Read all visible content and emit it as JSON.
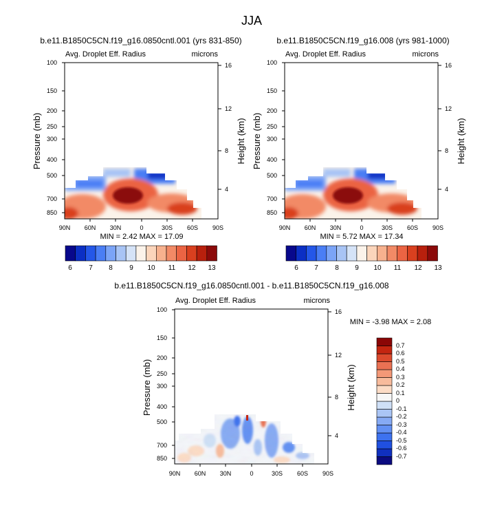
{
  "figure_title": "JJA",
  "colors": {
    "main_scale": [
      "#08088c",
      "#0b2fc4",
      "#2457e8",
      "#4a7ef5",
      "#7ba4f7",
      "#a8c4f5",
      "#d5e3f7",
      "#fbf3ea",
      "#fbd5bb",
      "#f7b18e",
      "#f28a66",
      "#eb6443",
      "#d9401f",
      "#b8200d",
      "#8b0a0a"
    ],
    "diff_scale": [
      "#0b0b80",
      "#1030bf",
      "#2050e0",
      "#3d72ef",
      "#6290f3",
      "#86aaf4",
      "#aac5f5",
      "#cfe0f7",
      "#f7f7f7",
      "#fcdcc6",
      "#f8bb9c",
      "#f39877",
      "#ea7153",
      "#dc4a2d",
      "#c42510",
      "#8b0606"
    ]
  },
  "panels": [
    {
      "title": "b.e11.B1850C5CN.f19_g16.0850cntl.001 (yrs 831-850)",
      "left_label": "Avg. Droplet Eff. Radius",
      "right_label": "microns",
      "stats": "MIN =   2.42  MAX =  17.09",
      "colorbar_labels": [
        "6",
        "7",
        "8",
        "9",
        "10",
        "11",
        "12",
        "13"
      ]
    },
    {
      "title": "b.e11.B1850C5CN.f19_g16.008 (yrs 981-1000)",
      "left_label": "Avg. Droplet Eff. Radius",
      "right_label": "microns",
      "stats": "MIN =   5.72  MAX =  17.34",
      "colorbar_labels": [
        "6",
        "7",
        "8",
        "9",
        "10",
        "11",
        "12",
        "13"
      ]
    },
    {
      "title": "b.e11.B1850C5CN.f19_g16.0850cntl.001 - b.e11.B1850C5CN.f19_g16.008",
      "left_label": "Avg. Droplet Eff. Radius",
      "right_label": "microns",
      "stats": "MIN = -3.98  MAX =   2.08",
      "colorbar_labels": [
        "0.7",
        "0.6",
        "0.5",
        "0.4",
        "0.3",
        "0.2",
        "0.1",
        "0",
        "-0.1",
        "-0.2",
        "-0.3",
        "-0.4",
        "-0.5",
        "-0.6",
        "-0.7"
      ]
    }
  ],
  "chart_data": [
    {
      "type": "heatmap",
      "title": "b.e11.B1850C5CN.f19_g16.0850cntl.001 (yrs 831-850)",
      "xlabel": "",
      "ylabel": "Pressure (mb)",
      "y2label": "Height (km)",
      "x_ticks": [
        "90N",
        "60N",
        "30N",
        "0",
        "30S",
        "60S",
        "90S"
      ],
      "x_range": [
        90,
        -90
      ],
      "y_ticks": [
        "100",
        "150",
        "200",
        "250",
        "300",
        "400",
        "500",
        "700",
        "850"
      ],
      "y_range": [
        100,
        925
      ],
      "y2_ticks": [
        "16",
        "12",
        "8",
        "4"
      ],
      "variable": "Avg. Droplet Eff. Radius",
      "units": "microns",
      "min": 2.42,
      "max": 17.09,
      "levels": [
        6,
        6.5,
        7,
        7.5,
        8,
        8.5,
        9,
        9.5,
        10,
        10.5,
        11,
        11.5,
        12,
        12.5,
        13
      ],
      "features": [
        {
          "region": "tropics 30N-0",
          "pressure": "600-800",
          "value": 14
        },
        {
          "region": "southern midlatitudes 30S-60S",
          "pressure": "700-900",
          "value": 12.5
        },
        {
          "region": "northern high latitudes 60N-90N",
          "pressure": "850-925",
          "value": 12
        },
        {
          "region": "60N-45N upper cloud edge",
          "pressure": "500-650",
          "value": 7.5
        }
      ]
    },
    {
      "type": "heatmap",
      "title": "b.e11.B1850C5CN.f19_g16.008 (yrs 981-1000)",
      "xlabel": "",
      "ylabel": "Pressure (mb)",
      "y2label": "Height (km)",
      "x_ticks": [
        "90N",
        "60N",
        "30N",
        "0",
        "30S",
        "60S",
        "90S"
      ],
      "x_range": [
        90,
        -90
      ],
      "y_ticks": [
        "100",
        "150",
        "200",
        "250",
        "300",
        "400",
        "500",
        "700",
        "850"
      ],
      "y_range": [
        100,
        925
      ],
      "y2_ticks": [
        "16",
        "12",
        "8",
        "4"
      ],
      "variable": "Avg. Droplet Eff. Radius",
      "units": "microns",
      "min": 5.72,
      "max": 17.34,
      "levels": [
        6,
        6.5,
        7,
        7.5,
        8,
        8.5,
        9,
        9.5,
        10,
        10.5,
        11,
        11.5,
        12,
        12.5,
        13
      ],
      "features": [
        {
          "region": "tropics 30N-0",
          "pressure": "600-800",
          "value": 14
        },
        {
          "region": "southern midlatitudes 30S-60S",
          "pressure": "700-900",
          "value": 12.5
        },
        {
          "region": "northern high latitudes 60N-90N",
          "pressure": "850-925",
          "value": 12
        },
        {
          "region": "60N-45N upper cloud edge",
          "pressure": "500-650",
          "value": 7.5
        }
      ]
    },
    {
      "type": "heatmap",
      "title": "b.e11.B1850C5CN.f19_g16.0850cntl.001 - b.e11.B1850C5CN.f19_g16.008",
      "xlabel": "",
      "ylabel": "Pressure (mb)",
      "y2label": "Height (km)",
      "x_ticks": [
        "90N",
        "60N",
        "30N",
        "0",
        "30S",
        "60S",
        "90S"
      ],
      "x_range": [
        90,
        -90
      ],
      "y_ticks": [
        "100",
        "150",
        "200",
        "250",
        "300",
        "400",
        "500",
        "700",
        "850"
      ],
      "y_range": [
        100,
        925
      ],
      "y2_ticks": [
        "16",
        "12",
        "8",
        "4"
      ],
      "variable": "Avg. Droplet Eff. Radius (difference)",
      "units": "microns",
      "min": -3.98,
      "max": 2.08,
      "levels": [
        -0.7,
        -0.6,
        -0.5,
        -0.4,
        -0.3,
        -0.2,
        -0.1,
        0,
        0.1,
        0.2,
        0.3,
        0.4,
        0.5,
        0.6,
        0.7
      ],
      "features": [
        {
          "region": "tropics 30N-0",
          "pressure": "450-700",
          "value": -0.4
        },
        {
          "region": "southern midlatitudes 30S-60S",
          "pressure": "600-850",
          "value": -0.3
        },
        {
          "region": "northern high latitudes",
          "pressure": "650-925",
          "value": 0.1
        }
      ]
    }
  ]
}
